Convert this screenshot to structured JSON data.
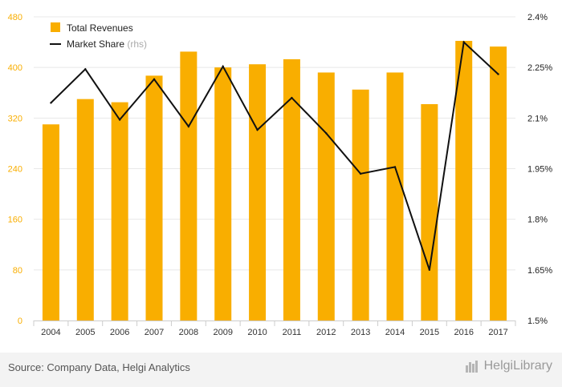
{
  "chart_data": {
    "type": "bar",
    "categories": [
      "2004",
      "2005",
      "2006",
      "2007",
      "2008",
      "2009",
      "2010",
      "2011",
      "2012",
      "2013",
      "2014",
      "2015",
      "2016",
      "2017"
    ],
    "series": [
      {
        "name": "Total Revenues",
        "type": "bar",
        "axis": "left",
        "color": "#f9ae00",
        "values": [
          310,
          350,
          345,
          387,
          425,
          400,
          405,
          413,
          392,
          365,
          392,
          342,
          442,
          433
        ]
      },
      {
        "name": "Market Share",
        "type": "line",
        "axis": "right",
        "color": "#111111",
        "values": [
          2.145,
          2.245,
          2.095,
          2.215,
          2.075,
          2.253,
          2.065,
          2.16,
          2.055,
          1.935,
          1.955,
          1.65,
          2.325,
          2.23
        ]
      }
    ],
    "left_axis": {
      "ticks": [
        "0",
        "80",
        "160",
        "240",
        "320",
        "400",
        "480"
      ],
      "ylim": [
        0,
        480
      ],
      "color": "#f9ae00"
    },
    "right_axis": {
      "ticks": [
        "1.5%",
        "1.65%",
        "1.8%",
        "1.95%",
        "2.1%",
        "2.25%",
        "2.4%"
      ],
      "ylim": [
        1.5,
        2.4
      ],
      "color": "#222222"
    },
    "legend": {
      "position": "top-left",
      "items": [
        {
          "label": "Total Revenues",
          "marker": "square",
          "color": "#f9ae00"
        },
        {
          "label": "Market Share",
          "suffix": "(rhs)",
          "marker": "line",
          "color": "#111111"
        }
      ]
    },
    "grid": true
  },
  "footer": {
    "source": "Source: Company Data, Helgi Analytics",
    "brand": "HelgiLibrary"
  }
}
